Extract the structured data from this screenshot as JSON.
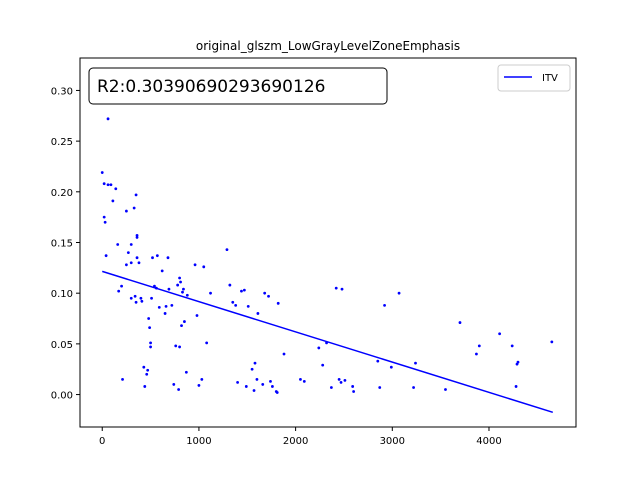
{
  "chart_data": {
    "type": "scatter",
    "title": "original_glszm_LowGrayLevelZoneEmphasis",
    "xlabel": "",
    "ylabel": "",
    "xlim": [
      -230,
      4900
    ],
    "ylim": [
      -0.032,
      0.332
    ],
    "x_ticks": [
      0,
      1000,
      2000,
      3000,
      4000
    ],
    "x_tick_labels": [
      "0",
      "1000",
      "2000",
      "3000",
      "4000"
    ],
    "y_ticks": [
      0.0,
      0.05,
      0.1,
      0.15,
      0.2,
      0.25,
      0.3
    ],
    "y_tick_labels": [
      "0.00",
      "0.05",
      "0.10",
      "0.15",
      "0.20",
      "0.25",
      "0.30"
    ],
    "grid": false,
    "legend": {
      "position": "top-right",
      "entries": [
        {
          "name": "ITV",
          "color": "#0000ff"
        }
      ]
    },
    "annotation": "R2:0.30390690293690126",
    "series": [
      {
        "name": "points",
        "color": "#0000ff",
        "points": [
          [
            0,
            0.219
          ],
          [
            20,
            0.208
          ],
          [
            60,
            0.207
          ],
          [
            90,
            0.207
          ],
          [
            110,
            0.191
          ],
          [
            140,
            0.203
          ],
          [
            20,
            0.175
          ],
          [
            30,
            0.17
          ],
          [
            40,
            0.137
          ],
          [
            60,
            0.272
          ],
          [
            160,
            0.148
          ],
          [
            170,
            0.102
          ],
          [
            200,
            0.107
          ],
          [
            210,
            0.015
          ],
          [
            250,
            0.181
          ],
          [
            250,
            0.128
          ],
          [
            270,
            0.14
          ],
          [
            300,
            0.148
          ],
          [
            300,
            0.095
          ],
          [
            300,
            0.13
          ],
          [
            330,
            0.184
          ],
          [
            340,
            0.097
          ],
          [
            350,
            0.091
          ],
          [
            350,
            0.197
          ],
          [
            360,
            0.155
          ],
          [
            360,
            0.157
          ],
          [
            360,
            0.135
          ],
          [
            380,
            0.13
          ],
          [
            400,
            0.095
          ],
          [
            410,
            0.092
          ],
          [
            430,
            0.027
          ],
          [
            440,
            0.008
          ],
          [
            460,
            0.02
          ],
          [
            470,
            0.024
          ],
          [
            480,
            0.075
          ],
          [
            490,
            0.066
          ],
          [
            500,
            0.051
          ],
          [
            500,
            0.047
          ],
          [
            510,
            0.095
          ],
          [
            520,
            0.135
          ],
          [
            540,
            0.107
          ],
          [
            560,
            0.105
          ],
          [
            570,
            0.137
          ],
          [
            590,
            0.086
          ],
          [
            620,
            0.122
          ],
          [
            650,
            0.08
          ],
          [
            660,
            0.087
          ],
          [
            680,
            0.135
          ],
          [
            690,
            0.104
          ],
          [
            720,
            0.088
          ],
          [
            740,
            0.01
          ],
          [
            760,
            0.048
          ],
          [
            780,
            0.108
          ],
          [
            790,
            0.005
          ],
          [
            800,
            0.115
          ],
          [
            800,
            0.047
          ],
          [
            810,
            0.111
          ],
          [
            820,
            0.068
          ],
          [
            830,
            0.101
          ],
          [
            840,
            0.104
          ],
          [
            850,
            0.072
          ],
          [
            870,
            0.022
          ],
          [
            880,
            0.098
          ],
          [
            960,
            0.128
          ],
          [
            980,
            0.078
          ],
          [
            1000,
            0.009
          ],
          [
            1030,
            0.015
          ],
          [
            1050,
            0.126
          ],
          [
            1080,
            0.051
          ],
          [
            1120,
            0.1
          ],
          [
            1290,
            0.143
          ],
          [
            1320,
            0.108
          ],
          [
            1350,
            0.091
          ],
          [
            1380,
            0.088
          ],
          [
            1400,
            0.012
          ],
          [
            1440,
            0.102
          ],
          [
            1470,
            0.103
          ],
          [
            1490,
            0.008
          ],
          [
            1510,
            0.087
          ],
          [
            1550,
            0.025
          ],
          [
            1570,
            0.004
          ],
          [
            1580,
            0.031
          ],
          [
            1600,
            0.015
          ],
          [
            1610,
            0.08
          ],
          [
            1660,
            0.01
          ],
          [
            1680,
            0.1
          ],
          [
            1720,
            0.097
          ],
          [
            1740,
            0.013
          ],
          [
            1760,
            0.008
          ],
          [
            1800,
            0.003
          ],
          [
            1810,
            0.002
          ],
          [
            1820,
            0.09
          ],
          [
            1880,
            0.04
          ],
          [
            2050,
            0.015
          ],
          [
            2090,
            0.013
          ],
          [
            2240,
            0.046
          ],
          [
            2280,
            0.029
          ],
          [
            2320,
            0.051
          ],
          [
            2370,
            0.007
          ],
          [
            2420,
            0.105
          ],
          [
            2450,
            0.015
          ],
          [
            2470,
            0.012
          ],
          [
            2480,
            0.104
          ],
          [
            2510,
            0.014
          ],
          [
            2590,
            0.008
          ],
          [
            2600,
            0.003
          ],
          [
            2850,
            0.033
          ],
          [
            2870,
            0.007
          ],
          [
            2920,
            0.088
          ],
          [
            2990,
            0.027
          ],
          [
            3070,
            0.1
          ],
          [
            3220,
            0.007
          ],
          [
            3240,
            0.031
          ],
          [
            3550,
            0.005
          ],
          [
            3700,
            0.071
          ],
          [
            3870,
            0.04
          ],
          [
            3900,
            0.048
          ],
          [
            4110,
            0.06
          ],
          [
            4240,
            0.048
          ],
          [
            4280,
            0.008
          ],
          [
            4290,
            0.03
          ],
          [
            4300,
            0.032
          ],
          [
            4650,
            0.052
          ]
        ]
      },
      {
        "name": "ITV",
        "color": "#0000ff",
        "line": [
          [
            0,
            0.1215
          ],
          [
            4660,
            -0.0175
          ]
        ]
      }
    ]
  }
}
